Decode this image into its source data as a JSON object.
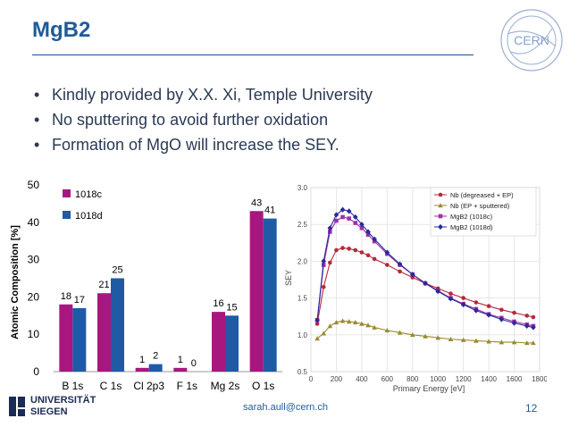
{
  "slide": {
    "title": "MgB2",
    "bullets": [
      "Kindly provided by X.X. Xi, Temple University",
      "No sputtering to avoid further oxidation",
      "Formation of MgO will increase the SEY."
    ],
    "email": "sarah.aull@cern.ch",
    "page": "12",
    "cern_logo_text": "CERN",
    "university": [
      "UNIVERSITÄT",
      "SIEGEN"
    ]
  },
  "colors": {
    "title": "#1f5b9a",
    "series_1018c": "#a8177f",
    "series_1018d": "#1f5aa6"
  },
  "chart_data": [
    {
      "type": "bar",
      "categories": [
        "B 1s",
        "C 1s",
        "Cl 2p3",
        "F 1s",
        "Mg 2s",
        "O 1s"
      ],
      "series": [
        {
          "name": "1018c",
          "values": [
            18,
            21,
            1,
            1,
            16,
            43
          ],
          "color": "#a8177f"
        },
        {
          "name": "1018d",
          "values": [
            17,
            25,
            2,
            0,
            15,
            41
          ],
          "color": "#1f5aa6"
        }
      ],
      "ylabel": "Atomic Composition [%]",
      "ylim": [
        0,
        50
      ],
      "yticks": [
        0,
        10,
        20,
        30,
        40,
        50
      ],
      "legend": "top-left"
    },
    {
      "type": "line",
      "xlabel": "Primary Energy [eV]",
      "ylabel": "SEY",
      "xlim": [
        0,
        1800
      ],
      "ylim": [
        0.5,
        3.0
      ],
      "xticks": [
        0,
        200,
        400,
        600,
        800,
        1000,
        1200,
        1400,
        1600,
        1800
      ],
      "yticks": [
        0.5,
        1.0,
        1.5,
        2.0,
        2.5,
        3.0
      ],
      "grid": true,
      "legend": "top-right",
      "x": [
        50,
        100,
        150,
        200,
        250,
        300,
        350,
        400,
        450,
        500,
        600,
        700,
        800,
        900,
        1000,
        1100,
        1200,
        1300,
        1400,
        1500,
        1600,
        1700,
        1750
      ],
      "series": [
        {
          "name": "Nb (degreased + EP)",
          "color": "#b5283c",
          "marker": "circle",
          "values": [
            1.15,
            1.65,
            1.98,
            2.15,
            2.18,
            2.17,
            2.15,
            2.12,
            2.08,
            2.03,
            1.95,
            1.86,
            1.78,
            1.7,
            1.63,
            1.56,
            1.5,
            1.44,
            1.39,
            1.34,
            1.3,
            1.26,
            1.24
          ]
        },
        {
          "name": "Nb (EP + sputtered)",
          "color": "#9a8a30",
          "marker": "triangle",
          "values": [
            0.95,
            1.02,
            1.12,
            1.17,
            1.19,
            1.18,
            1.17,
            1.15,
            1.13,
            1.1,
            1.06,
            1.03,
            1.0,
            0.98,
            0.96,
            0.94,
            0.93,
            0.92,
            0.91,
            0.9,
            0.9,
            0.89,
            0.89
          ]
        },
        {
          "name": "MgB2 (1018c)",
          "color": "#a030a8",
          "marker": "square",
          "values": [
            1.2,
            1.95,
            2.4,
            2.55,
            2.6,
            2.58,
            2.52,
            2.45,
            2.36,
            2.27,
            2.1,
            1.95,
            1.82,
            1.7,
            1.6,
            1.5,
            1.42,
            1.35,
            1.28,
            1.23,
            1.18,
            1.14,
            1.12
          ]
        },
        {
          "name": "MgB2 (1018d)",
          "color": "#2a2a9a",
          "marker": "diamond",
          "values": [
            1.2,
            2.0,
            2.45,
            2.63,
            2.7,
            2.68,
            2.6,
            2.5,
            2.4,
            2.3,
            2.12,
            1.96,
            1.82,
            1.7,
            1.59,
            1.49,
            1.41,
            1.33,
            1.27,
            1.21,
            1.16,
            1.12,
            1.1
          ]
        }
      ]
    }
  ]
}
